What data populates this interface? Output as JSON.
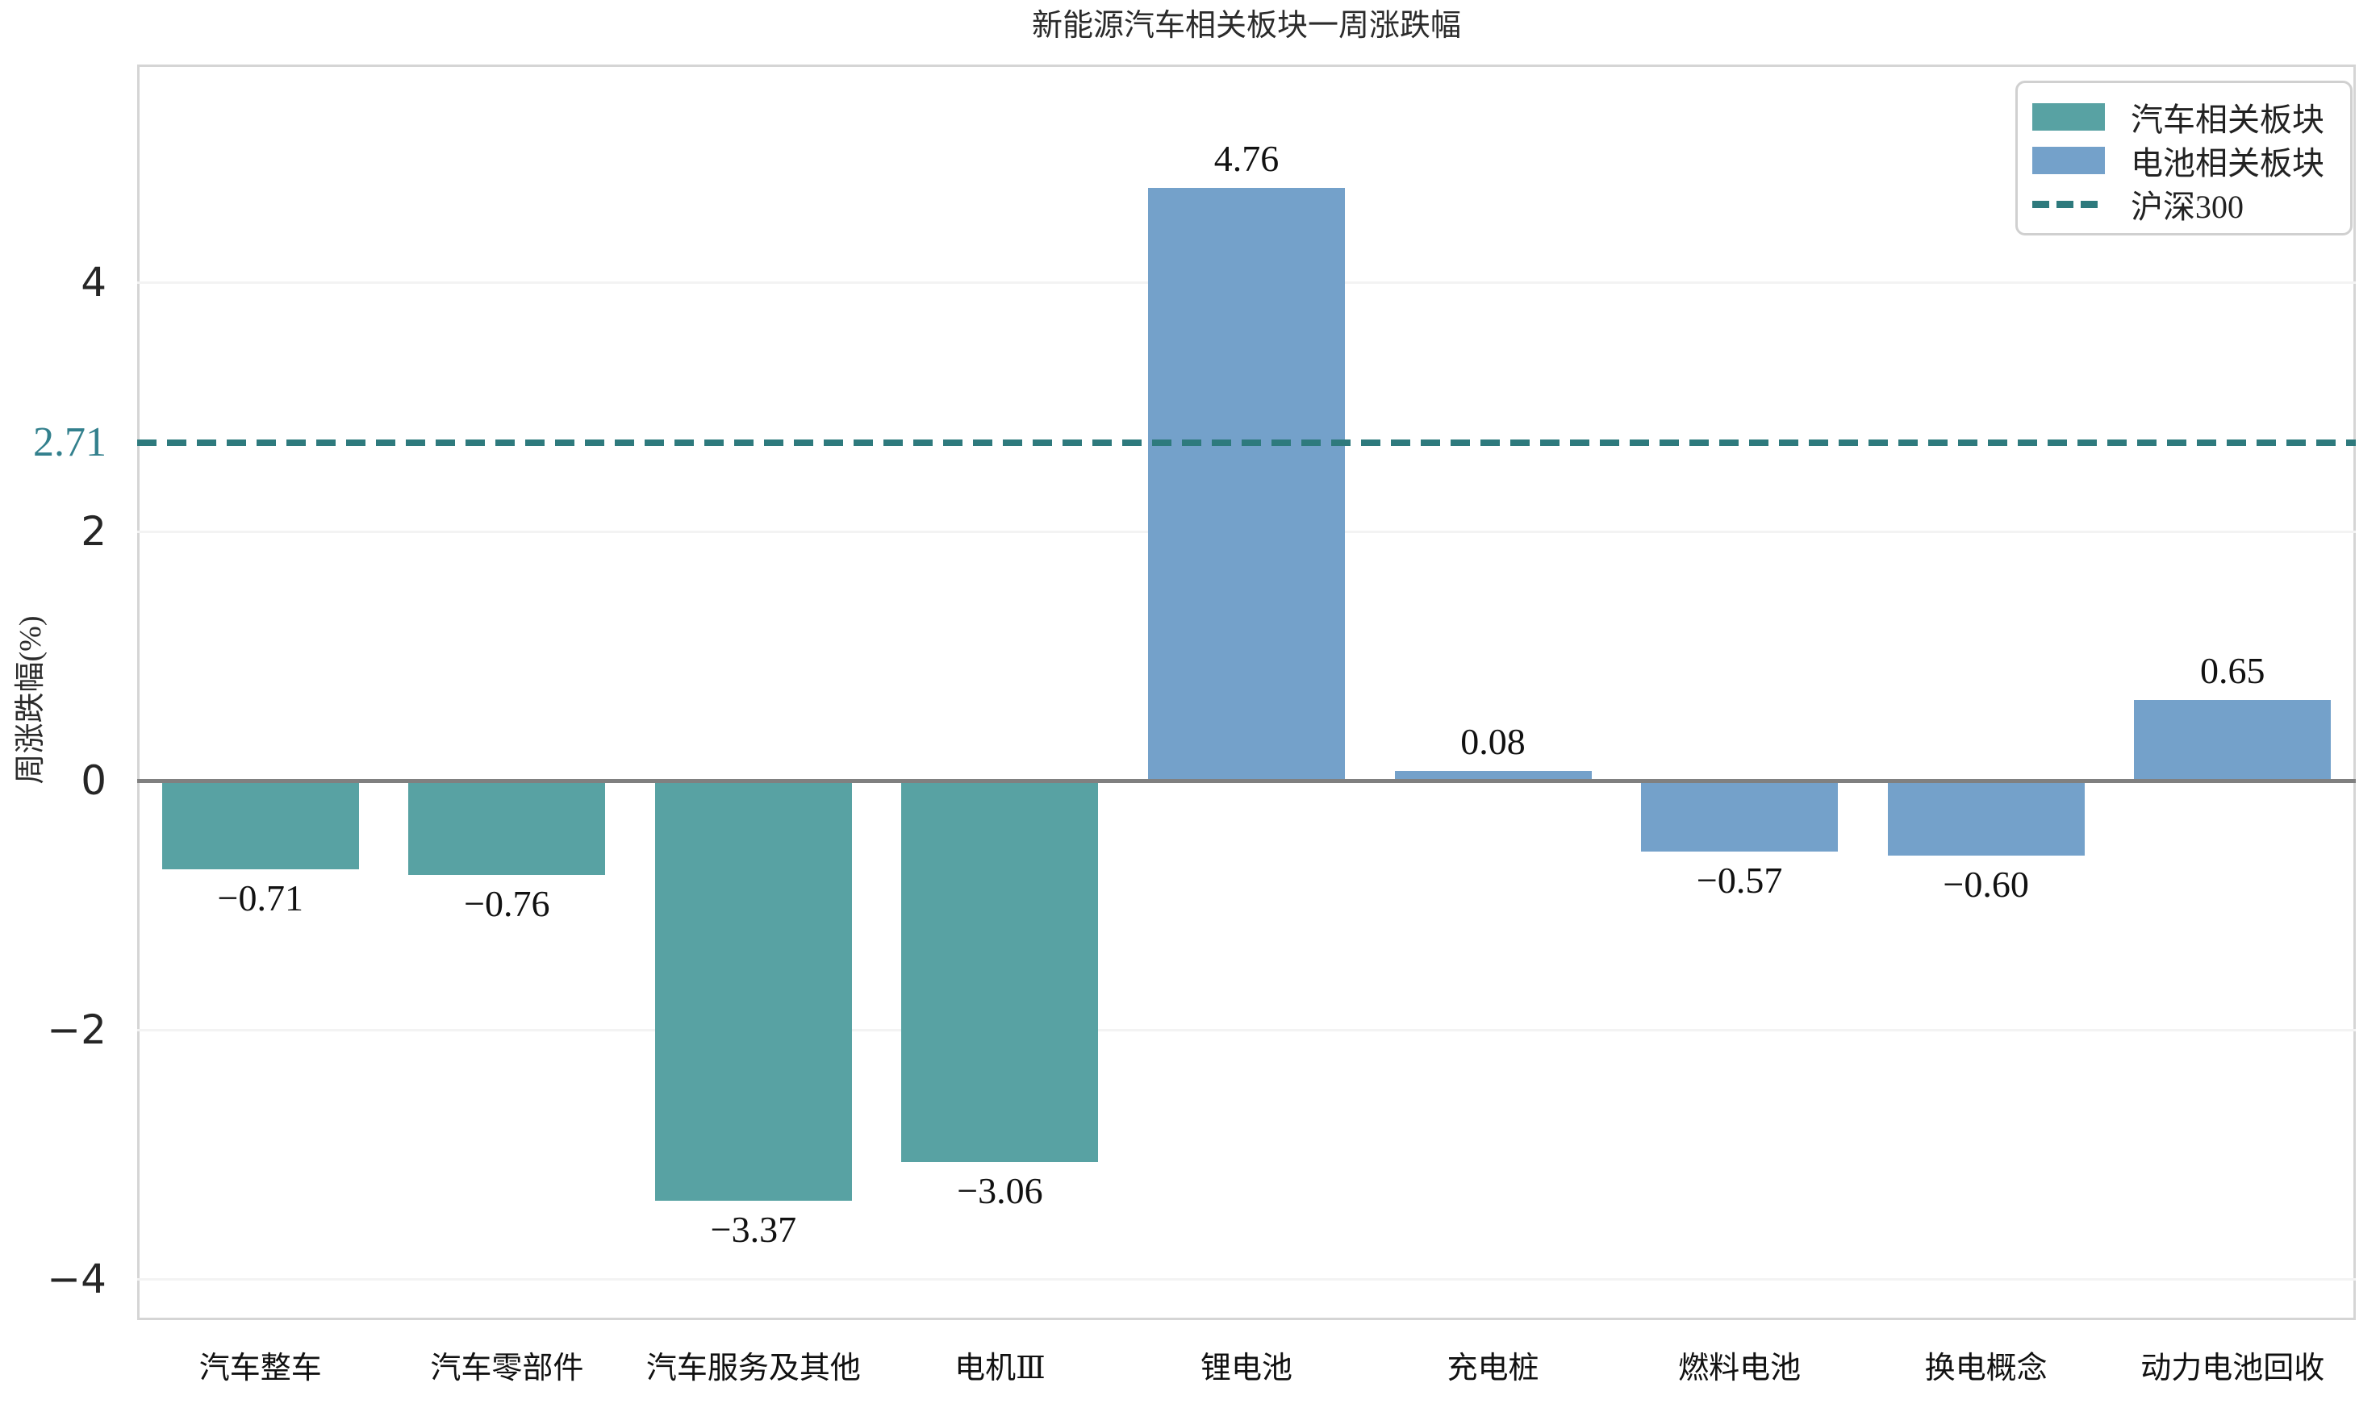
{
  "title": "新能源汽车相关板块一周涨跌幅",
  "y_axis_label": "周涨跌幅(%)",
  "colors": {
    "auto_group": "#58a2a3",
    "battery_group": "#74a1ca",
    "reference_line": "#2e7a7d",
    "reference_label": "#33808d",
    "zero_line": "#808080",
    "grid": "#f3f3f3",
    "plot_border": "#d5d5d5"
  },
  "legend": {
    "items": [
      {
        "label": "汽车相关板块",
        "swatch": "patch",
        "color": "#58a2a3"
      },
      {
        "label": "电池相关板块",
        "swatch": "patch",
        "color": "#74a1ca"
      },
      {
        "label": "沪深300",
        "swatch": "dash",
        "color": "#2e7a7d"
      }
    ]
  },
  "chart_data": {
    "type": "bar",
    "title": "新能源汽车相关板块一周涨跌幅",
    "xlabel": "",
    "ylabel": "周涨跌幅(%)",
    "ylim": [
      -4.35,
      5.75
    ],
    "yticks": [
      {
        "value": 4,
        "label": "4"
      },
      {
        "value": 2,
        "label": "2"
      },
      {
        "value": 0,
        "label": "0"
      },
      {
        "value": -2,
        "label": "−2"
      },
      {
        "value": -4,
        "label": "−4"
      }
    ],
    "grid": "horizontal",
    "legend_position": "upper right",
    "categories": [
      "汽车整车",
      "汽车零部件",
      "汽车服务及其他",
      "电机Ⅲ",
      "锂电池",
      "充电桩",
      "燃料电池",
      "换电概念",
      "动力电池回收"
    ],
    "bars": [
      {
        "category": "汽车整车",
        "value": -0.71,
        "label": "−0.71",
        "group": "汽车相关板块"
      },
      {
        "category": "汽车零部件",
        "value": -0.76,
        "label": "−0.76",
        "group": "汽车相关板块"
      },
      {
        "category": "汽车服务及其他",
        "value": -3.37,
        "label": "−3.37",
        "group": "汽车相关板块"
      },
      {
        "category": "电机Ⅲ",
        "value": -3.06,
        "label": "−3.06",
        "group": "汽车相关板块"
      },
      {
        "category": "锂电池",
        "value": 4.76,
        "label": "4.76",
        "group": "电池相关板块"
      },
      {
        "category": "充电桩",
        "value": 0.08,
        "label": "0.08",
        "group": "电池相关板块"
      },
      {
        "category": "燃料电池",
        "value": -0.57,
        "label": "−0.57",
        "group": "电池相关板块"
      },
      {
        "category": "换电概念",
        "value": -0.6,
        "label": "−0.60",
        "group": "电池相关板块"
      },
      {
        "category": "动力电池回收",
        "value": 0.65,
        "label": "0.65",
        "group": "电池相关板块"
      }
    ],
    "reference_line": {
      "name": "沪深300",
      "value": 2.71,
      "label": "2.71",
      "style": "dashed"
    }
  }
}
